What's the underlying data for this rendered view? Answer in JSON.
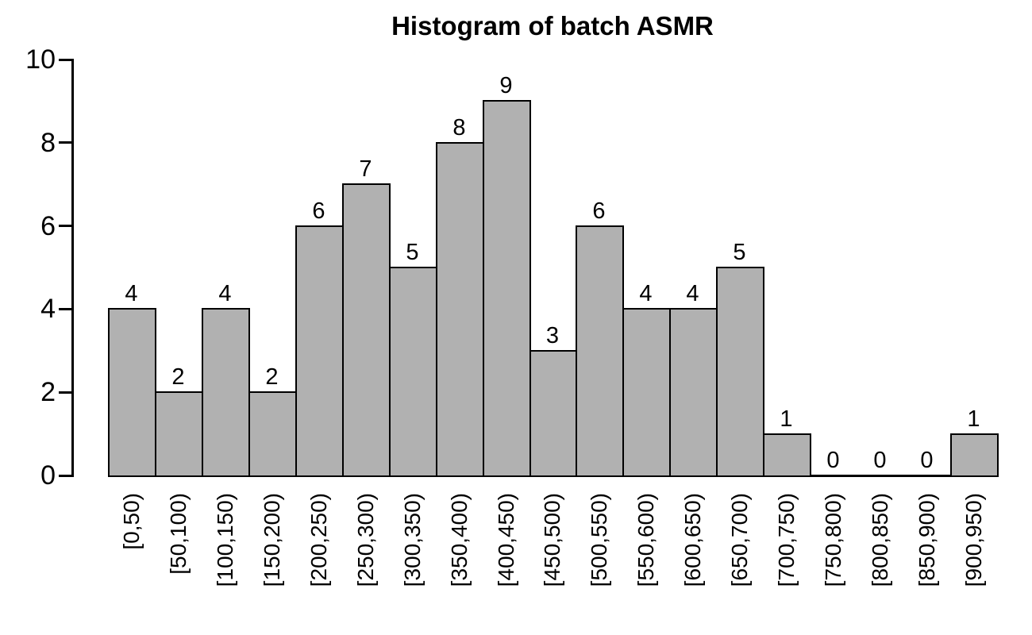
{
  "title": "Histogram of batch ASMR",
  "chart_data": {
    "type": "bar",
    "title": "Histogram of batch ASMR",
    "categories": [
      "[0,50)",
      "[50,100)",
      "[100,150)",
      "[150,200)",
      "[200,250)",
      "[250,300)",
      "[300,350)",
      "[350,400)",
      "[400,450)",
      "[450,500)",
      "[500,550)",
      "[550,600)",
      "[600,650)",
      "[650,700)",
      "[700,750)",
      "[750,800)",
      "[800,850)",
      "[850,900)",
      "[900,950)"
    ],
    "values": [
      4,
      2,
      4,
      2,
      6,
      7,
      5,
      8,
      9,
      3,
      6,
      4,
      4,
      5,
      1,
      0,
      0,
      0,
      1
    ],
    "value_labels_shown": true,
    "xlabel": "",
    "ylabel": "",
    "ylim": [
      0,
      10
    ],
    "yticks": [
      "0",
      "2",
      "4",
      "6",
      "8",
      "10"
    ],
    "grid": false,
    "legend": false,
    "colors": {
      "bar_fill": "#b1b1b1",
      "bar_border": "#000000",
      "axis": "#000000",
      "text": "#000000",
      "background": "#ffffff"
    }
  }
}
